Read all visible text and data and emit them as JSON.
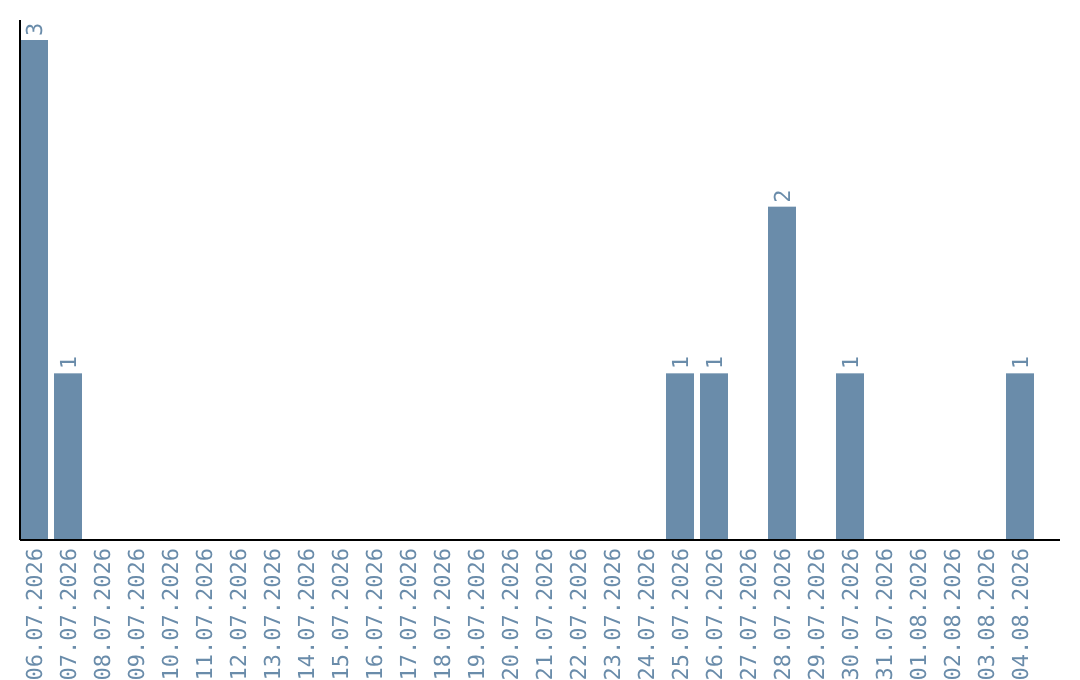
{
  "chart_data": {
    "type": "bar",
    "categories": [
      "06.07.2026",
      "07.07.2026",
      "08.07.2026",
      "09.07.2026",
      "10.07.2026",
      "11.07.2026",
      "12.07.2026",
      "13.07.2026",
      "14.07.2026",
      "15.07.2026",
      "16.07.2026",
      "17.07.2026",
      "18.07.2026",
      "19.07.2026",
      "20.07.2026",
      "21.07.2026",
      "22.07.2026",
      "23.07.2026",
      "24.07.2026",
      "25.07.2026",
      "26.07.2026",
      "27.07.2026",
      "28.07.2026",
      "29.07.2026",
      "30.07.2026",
      "31.07.2026",
      "01.08.2026",
      "02.08.2026",
      "03.08.2026",
      "04.08.2026"
    ],
    "values": [
      3,
      1,
      0,
      0,
      0,
      0,
      0,
      0,
      0,
      0,
      0,
      0,
      0,
      0,
      0,
      0,
      0,
      0,
      0,
      1,
      1,
      0,
      2,
      0,
      1,
      0,
      0,
      0,
      0,
      1
    ],
    "value_labels": [
      "3",
      "1",
      null,
      null,
      null,
      null,
      null,
      null,
      null,
      null,
      null,
      null,
      null,
      null,
      null,
      null,
      null,
      null,
      null,
      "1",
      "1",
      null,
      "2",
      null,
      "1",
      null,
      null,
      null,
      null,
      "1"
    ],
    "color": "#6a8caa"
  }
}
